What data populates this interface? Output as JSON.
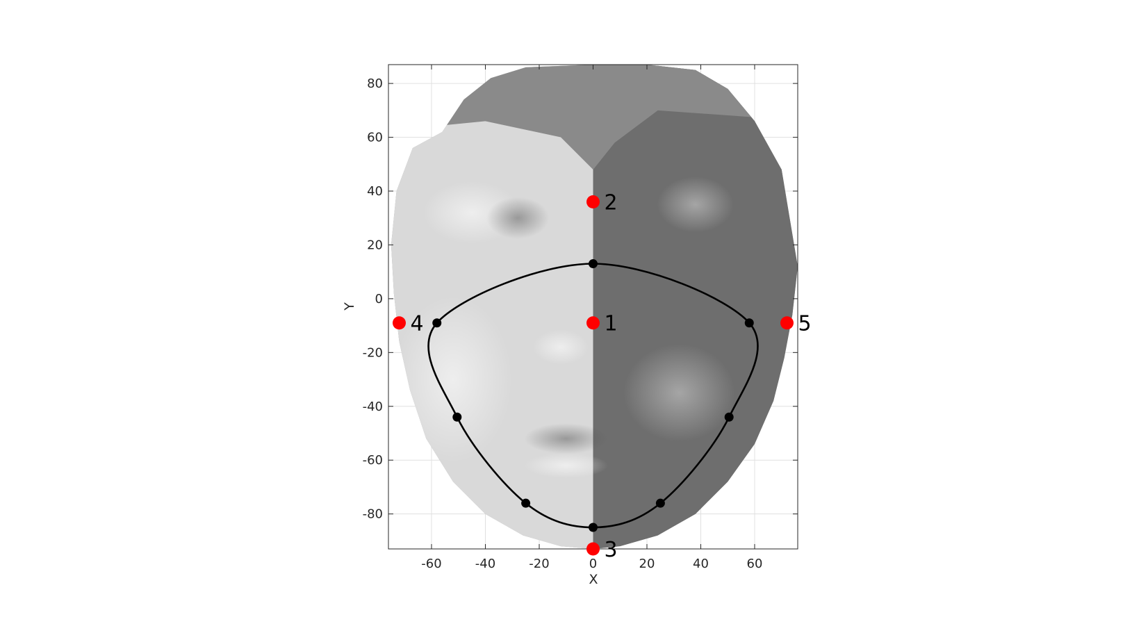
{
  "colors": {
    "background": "#ffffff",
    "landmark": "#ff0000",
    "contour": "#000000",
    "grid": "#e0e0e0",
    "face_light": "#e6e6e6",
    "face_dark": "#6e6e6e"
  },
  "chart_data": {
    "type": "scatter",
    "title": "",
    "xlabel": "X",
    "ylabel": "Y",
    "xlim": [
      -76,
      76
    ],
    "ylim": [
      -93,
      87
    ],
    "xticks": [
      -60,
      -40,
      -20,
      0,
      20,
      40,
      60
    ],
    "yticks": [
      -80,
      -60,
      -40,
      -20,
      0,
      20,
      40,
      60,
      80
    ],
    "grid": true,
    "background_image": "shaded frontal face surface (grayscale)",
    "landmarks": [
      {
        "label": "1",
        "x": 0,
        "y": -9
      },
      {
        "label": "2",
        "x": 0,
        "y": 36
      },
      {
        "label": "3",
        "x": 0,
        "y": -93
      },
      {
        "label": "4",
        "x": -72,
        "y": -9
      },
      {
        "label": "5",
        "x": 72,
        "y": -9
      }
    ],
    "contour_points": [
      {
        "x": 0,
        "y": 13
      },
      {
        "x": 58,
        "y": -9
      },
      {
        "x": 50.5,
        "y": -44
      },
      {
        "x": 25,
        "y": -76
      },
      {
        "x": 0,
        "y": -85
      },
      {
        "x": -25,
        "y": -76
      },
      {
        "x": -50.5,
        "y": -44
      },
      {
        "x": -58,
        "y": -9
      }
    ]
  }
}
